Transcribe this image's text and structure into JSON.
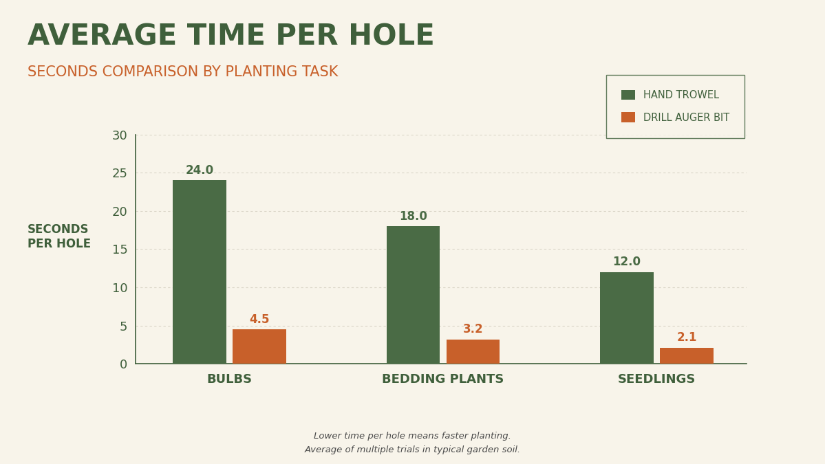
{
  "chart_data": {
    "type": "bar",
    "title": "AVERAGE TIME PER HOLE",
    "subtitle": "SECONDS COMPARISON BY PLANTING TASK",
    "y_label": "SECONDS PER HOLE",
    "notes": [
      "Lower time per hole means faster planting.",
      "Average of multiple trials in typical garden soil."
    ],
    "categories": [
      "BULBS",
      "BEDDING PLANTS",
      "SEEDLINGS"
    ],
    "series": [
      {
        "name": "HAND TROWEL",
        "color": "#4a6b45",
        "values": [
          24.0,
          18.0,
          12.0
        ],
        "value_labels": [
          "24.0",
          "18.0",
          "12.0"
        ]
      },
      {
        "name": "DRILL AUGER BIT",
        "color": "#c8602a",
        "values": [
          4.5,
          3.2,
          2.1
        ],
        "value_labels": [
          "4.5",
          "3.2",
          "2.1"
        ]
      }
    ],
    "ylim": [
      0,
      30
    ],
    "yticks": [
      0,
      5,
      10,
      15,
      20,
      25,
      30
    ],
    "grid": true,
    "legend": "upper right",
    "data_labels": true
  }
}
